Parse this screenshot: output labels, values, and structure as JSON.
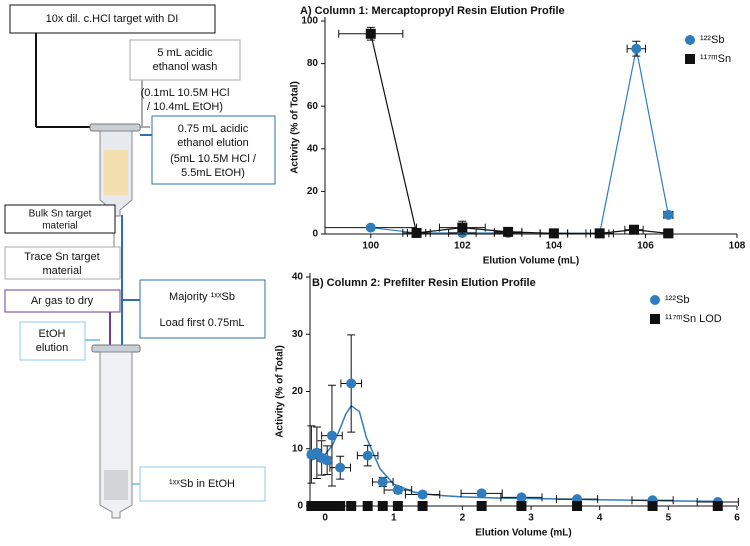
{
  "diagram": {
    "boxes": [
      {
        "lines": [
          "10x dil. c.HCl target with DI"
        ]
      },
      {
        "lines": [
          "5 mL acidic",
          "ethanol wash",
          "(0.1mL 10.5M HCl",
          "/ 10.4mL EtOH)"
        ]
      },
      {
        "lines": [
          "0.75 mL acidic",
          "ethanol elution",
          "(5mL 10.5M HCl /",
          "5.5mL EtOH)"
        ]
      },
      {
        "lines": [
          "Bulk Sn target",
          "material"
        ]
      },
      {
        "lines": [
          "Trace Sn target",
          "material"
        ]
      },
      {
        "lines": [
          "Ar gas to dry"
        ]
      },
      {
        "lines": [
          "EtOH",
          "elution"
        ]
      },
      {
        "lines": [
          "Majority ¹ˣˣSb",
          "Load first 0.75mL"
        ]
      },
      {
        "lines": [
          "¹ˣˣSb in EtOH"
        ]
      }
    ]
  },
  "chart_data": [
    {
      "type": "scatter",
      "title": "A) Column 1: Mercaptopropyl Resin Elution Profile",
      "x_label": "Elution Volume (mL)",
      "y_label": "Activity (% of Total)",
      "xlim": [
        99,
        108
      ],
      "xticks": [
        100,
        102,
        104,
        106,
        108
      ],
      "ylim": [
        0,
        100
      ],
      "yticks": [
        0,
        20,
        40,
        60,
        80,
        100
      ],
      "legend": "upper right",
      "connect": true,
      "series": [
        {
          "name": "¹²²Sb",
          "color": "#2f7dbf",
          "marker": "circle",
          "x": [
            100,
            101,
            102,
            103,
            104,
            105,
            105.8,
            106.5
          ],
          "values": [
            3,
            0.5,
            0.5,
            0.5,
            0.3,
            0.3,
            87,
            9
          ],
          "errors": [
            0.5,
            0.2,
            0.2,
            0.2,
            0.2,
            0.2,
            3.5,
            1.5
          ],
          "x_errors": [
            1,
            0.3,
            0.3,
            0.3,
            0.3,
            0.3,
            0.2,
            0.1
          ]
        },
        {
          "name": "¹¹⁷ᵐSn",
          "color": "#111111",
          "marker": "square",
          "x": [
            100,
            101,
            102,
            103,
            104,
            105,
            105.75,
            106.5
          ],
          "values": [
            94,
            0.5,
            3,
            1,
            0.3,
            0.3,
            2,
            0.3
          ],
          "errors": [
            3,
            0.3,
            3,
            0.5,
            0.2,
            0.2,
            0.5,
            0.2
          ],
          "x_errors": [
            0.7,
            0.2,
            0.5,
            0.3,
            0.3,
            0.2,
            0.2,
            0.1
          ]
        }
      ]
    },
    {
      "type": "scatter",
      "title": "B) Column 2: Prefilter Resin Elution Profile",
      "x_label": "Elution Volume (mL)",
      "y_label": "Activity (% of Total)",
      "xlim": [
        -0.22,
        6
      ],
      "xticks": [
        0,
        1,
        2,
        3,
        4,
        5,
        6
      ],
      "ylim": [
        0,
        40
      ],
      "yticks": [
        0,
        10,
        20,
        30,
        40
      ],
      "legend": "upper right",
      "connect": false,
      "fit": {
        "color": "#2f7dbf",
        "x": [
          -0.2,
          0,
          0.1,
          0.2,
          0.3,
          0.38,
          0.5,
          0.6,
          0.8,
          1.0,
          1.3,
          1.6,
          2,
          2.5,
          3,
          4,
          5,
          5.72
        ],
        "values": [
          8,
          9,
          10.5,
          13,
          16,
          17.5,
          16.5,
          12,
          6.5,
          3.8,
          2.4,
          1.9,
          1.6,
          1.4,
          1.3,
          1.1,
          0.9,
          0.8
        ]
      },
      "series": [
        {
          "name": "¹²²Sb",
          "color": "#2f7dbf",
          "marker": "circle",
          "x": [
            -0.2,
            -0.12,
            -0.05,
            0.03,
            0.1,
            0.22,
            0.38,
            0.62,
            0.84,
            1.06,
            1.42,
            2.28,
            2.86,
            3.67,
            4.77,
            5.72
          ],
          "values": [
            9,
            9.3,
            8.4,
            8,
            12.3,
            6.7,
            21.4,
            8.8,
            4.2,
            2.8,
            2,
            2.2,
            1.5,
            1.2,
            1,
            0.7
          ],
          "errors": [
            5,
            4.5,
            3,
            2.5,
            8.8,
            2,
            8.5,
            1.8,
            0.8,
            0.6,
            0.5,
            0.5,
            0.4,
            0.3,
            0.3,
            0.3
          ],
          "x_errors": [
            0.05,
            0.05,
            0.05,
            0.05,
            0.15,
            0.15,
            0.15,
            0.15,
            0.15,
            0.2,
            0.25,
            0.3,
            0.3,
            0.3,
            0.3,
            0.3
          ]
        },
        {
          "name": "¹¹⁷ᵐSn LOD",
          "color": "#111111",
          "marker": "square",
          "x": [
            -0.2,
            -0.12,
            -0.05,
            0.03,
            0.1,
            0.22,
            0.38,
            0.62,
            0.84,
            1.06,
            1.42,
            2.28,
            2.86,
            3.67,
            4.77,
            5.72
          ],
          "values": [
            0,
            0,
            0,
            0,
            0,
            0,
            0,
            0,
            0,
            0,
            0,
            0,
            0,
            0,
            0,
            0
          ]
        }
      ]
    }
  ]
}
